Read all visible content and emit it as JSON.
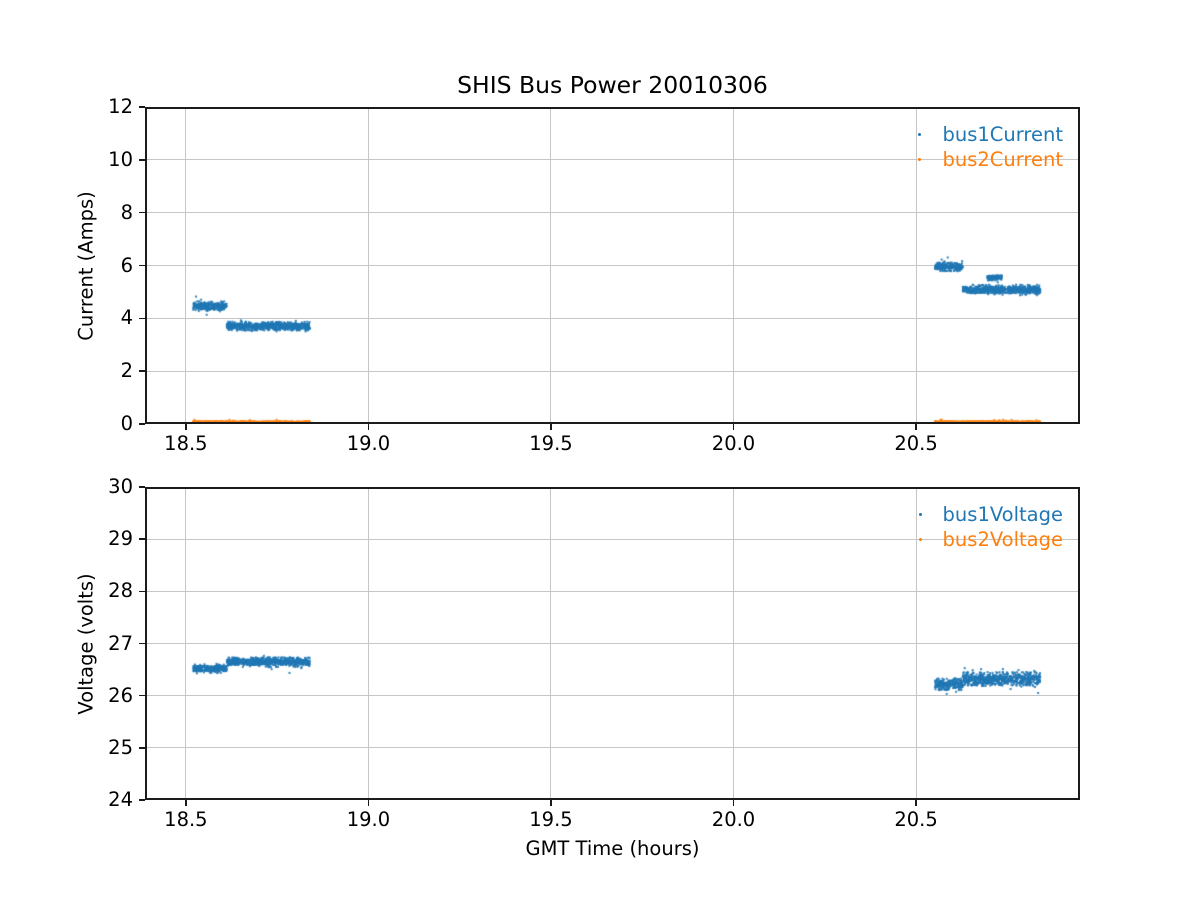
{
  "figure": {
    "title": "SHIS Bus Power 20010306",
    "background_color": "#ffffff",
    "grid_color": "#c6c6c6",
    "spine_color": "#1b1b1b",
    "text_color": "#000000"
  },
  "chart_data": [
    {
      "type": "scatter",
      "title": "SHIS Bus Power 20010306",
      "xlabel": "",
      "ylabel": "Current (Amps)",
      "xlim": [
        18.388,
        20.949
      ],
      "ylim": [
        0,
        12
      ],
      "xticks": [
        18.5,
        19.0,
        19.5,
        20.0,
        20.5
      ],
      "xtick_labels": [
        "18.5",
        "19.0",
        "19.5",
        "20.0",
        "20.5"
      ],
      "yticks": [
        0,
        2,
        4,
        6,
        8,
        10,
        12
      ],
      "ytick_labels": [
        "0",
        "2",
        "4",
        "6",
        "8",
        "10",
        "12"
      ],
      "grid": true,
      "legend_position": "upper right",
      "marker": "point",
      "quantize": 0.07,
      "series": [
        {
          "name": "bus1Current",
          "color": "#1f77b4",
          "segments": [
            {
              "t_start": 18.52,
              "t_end": 18.612,
              "level": 4.45,
              "spread": 0.18
            },
            {
              "t_start": 18.612,
              "t_end": 18.84,
              "level": 3.7,
              "spread": 0.18
            },
            {
              "t_start": 20.552,
              "t_end": 20.628,
              "level": 5.95,
              "spread": 0.18
            },
            {
              "t_start": 20.628,
              "t_end": 20.84,
              "level": 5.08,
              "spread": 0.18
            },
            {
              "t_start": 20.695,
              "t_end": 20.735,
              "level": 5.55,
              "spread": 0.1
            }
          ]
        },
        {
          "name": "bus2Current",
          "color": "#ff7f0e",
          "segments": [
            {
              "t_start": 18.52,
              "t_end": 18.84,
              "level": 0.06,
              "spread": 0.05
            },
            {
              "t_start": 20.552,
              "t_end": 20.84,
              "level": 0.06,
              "spread": 0.05
            }
          ]
        }
      ]
    },
    {
      "type": "scatter",
      "title": "",
      "xlabel": "GMT Time (hours)",
      "ylabel": "Voltage (volts)",
      "xlim": [
        18.388,
        20.949
      ],
      "ylim": [
        24,
        30
      ],
      "xticks": [
        18.5,
        19.0,
        19.5,
        20.0,
        20.5
      ],
      "xtick_labels": [
        "18.5",
        "19.0",
        "19.5",
        "20.0",
        "20.5"
      ],
      "yticks": [
        24,
        25,
        26,
        27,
        28,
        29,
        30
      ],
      "ytick_labels": [
        "24",
        "25",
        "26",
        "27",
        "28",
        "29",
        "30"
      ],
      "grid": true,
      "legend_position": "upper right",
      "marker": "point",
      "quantize": 0.04,
      "series": [
        {
          "name": "bus1Voltage",
          "color": "#1f77b4",
          "segments": [
            {
              "t_start": 18.52,
              "t_end": 18.612,
              "level": 26.52,
              "spread": 0.08
            },
            {
              "t_start": 18.612,
              "t_end": 18.84,
              "level": 26.65,
              "spread": 0.09
            },
            {
              "t_start": 20.552,
              "t_end": 20.628,
              "level": 26.22,
              "spread": 0.13
            },
            {
              "t_start": 20.628,
              "t_end": 20.84,
              "level": 26.32,
              "spread": 0.16
            }
          ]
        },
        {
          "name": "bus2Voltage",
          "color": "#ff7f0e",
          "segments": []
        }
      ]
    }
  ]
}
